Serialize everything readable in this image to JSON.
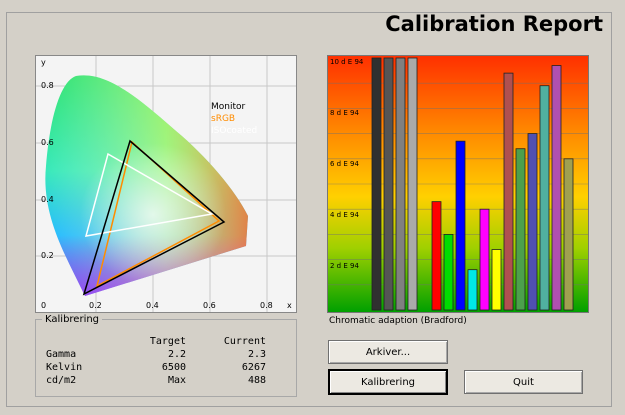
{
  "title": "Calibration Report",
  "cie": {
    "y_axis_label": "y",
    "x_axis_label": "x",
    "y_ticks": [
      "0.8",
      "0.6",
      "0.4",
      "0.2"
    ],
    "x_ticks": [
      "0",
      "0.2",
      "0.4",
      "0.6",
      "0.8"
    ],
    "legend": [
      {
        "label": "Monitor",
        "color": "#000000"
      },
      {
        "label": "sRGB",
        "color": "#ff8c00"
      },
      {
        "label": "ISOcoated",
        "color": "#ffffff"
      }
    ]
  },
  "delta_e": {
    "y_ticks": [
      "10 d E 94",
      "8 d E 94",
      "6 d E 94",
      "4 d E 94",
      "2 d E 94"
    ],
    "caption": "Chromatic adaption (Bradford)"
  },
  "chart_data": {
    "type": "bar",
    "ylabel": "d E 94",
    "ylim": [
      0,
      10
    ],
    "bars": [
      {
        "value": 10,
        "color": "#303030"
      },
      {
        "value": 10,
        "color": "#555555"
      },
      {
        "value": 10,
        "color": "#808080"
      },
      {
        "value": 10,
        "color": "#aaaaaa"
      },
      {
        "value": 4.3,
        "color": "#ff0000"
      },
      {
        "value": 3.0,
        "color": "#00dd00"
      },
      {
        "value": 6.7,
        "color": "#0000ff"
      },
      {
        "value": 1.6,
        "color": "#00e8e8"
      },
      {
        "value": 4.0,
        "color": "#ff00ff"
      },
      {
        "value": 2.4,
        "color": "#ffff00"
      },
      {
        "value": 9.4,
        "color": "#b05050"
      },
      {
        "value": 6.4,
        "color": "#4ca04c"
      },
      {
        "value": 7.0,
        "color": "#5050b0"
      },
      {
        "value": 8.9,
        "color": "#50b0a0"
      },
      {
        "value": 9.7,
        "color": "#b050b0"
      },
      {
        "value": 6.0,
        "color": "#a0a050"
      }
    ]
  },
  "kalibrering": {
    "legend": "Kalibrering",
    "headers": [
      "",
      "Target",
      "Current"
    ],
    "rows": [
      {
        "label": "Gamma",
        "target": "2.2",
        "current": "2.3"
      },
      {
        "label": "Kelvin",
        "target": "6500",
        "current": "6267"
      },
      {
        "label": "cd/m2",
        "target": "Max",
        "current": "488"
      }
    ]
  },
  "buttons": {
    "archive": "Arkiver...",
    "calibrate": "Kalibrering",
    "quit": "Quit"
  }
}
